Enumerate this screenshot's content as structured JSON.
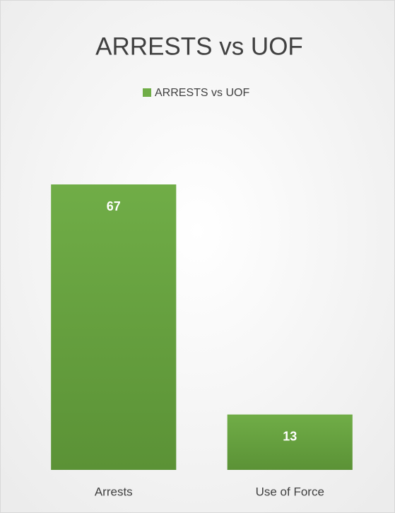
{
  "chart_data": {
    "type": "bar",
    "title": "ARRESTS vs UOF",
    "categories": [
      "Arrests",
      "Use of Force"
    ],
    "series": [
      {
        "name": "ARRESTS vs UOF",
        "color": "#70ad47",
        "values": [
          67,
          13
        ]
      }
    ]
  }
}
